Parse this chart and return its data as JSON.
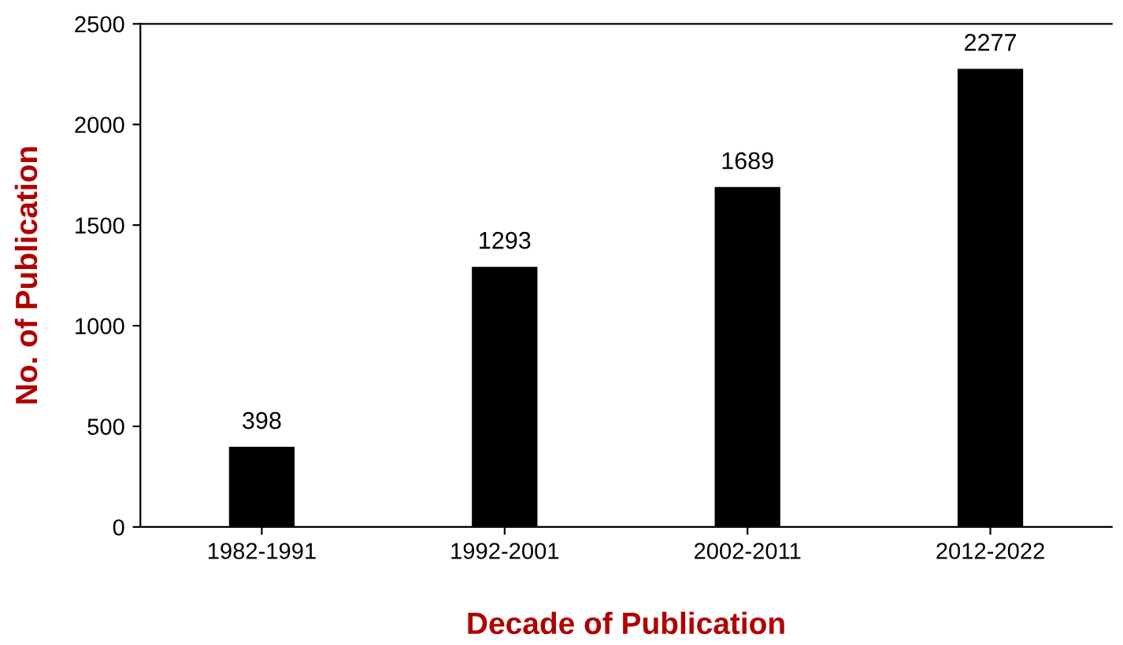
{
  "chart_data": {
    "type": "bar",
    "xlabel": "Decade of Publication",
    "ylabel": "No. of Publication",
    "categories": [
      "1982-1991",
      "1992-2001",
      "2002-2011",
      "2012-2022"
    ],
    "values": [
      398,
      1293,
      1689,
      2277
    ],
    "color": "#000000",
    "ylim": [
      0,
      2500
    ],
    "yticks": [
      0,
      500,
      1000,
      1500,
      2000,
      2500
    ],
    "grid": false,
    "data_labels": true
  }
}
